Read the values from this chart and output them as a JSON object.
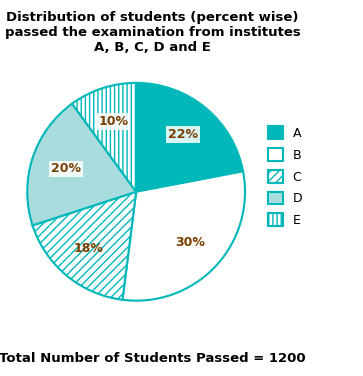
{
  "title": "Distribution of students (percent wise)\npassed the examination from institutes\nA, B, C, D and E",
  "footer": "Total Number of Students Passed = 1200",
  "slices": [
    {
      "label": "A",
      "value": 22,
      "color": "#00B8BA",
      "hatch": null
    },
    {
      "label": "B",
      "value": 30,
      "color": "#FFFFFF",
      "hatch": null
    },
    {
      "label": "C",
      "value": 18,
      "color": "#FFFFFF",
      "hatch": "////"
    },
    {
      "label": "D",
      "value": 20,
      "color": "#A8DCDD",
      "hatch": null
    },
    {
      "label": "E",
      "value": 10,
      "color": "#FFFFFF",
      "hatch": "||||"
    }
  ],
  "edge_color": "#00B8BA",
  "label_color": "#7B3F00",
  "title_fontsize": 9.5,
  "label_fontsize": 9,
  "footer_fontsize": 9.5,
  "legend_fontsize": 9,
  "start_angle": 90
}
